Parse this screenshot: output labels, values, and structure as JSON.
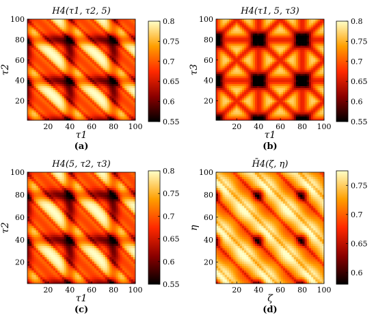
{
  "colors": {
    "map_low": "#000000",
    "map_mid_low": "#8b0000",
    "map_mid": "#ff2a00",
    "map_mid_high": "#ff9e00",
    "map_high": "#ffffc8"
  },
  "chart_data": [
    {
      "type": "heatmap",
      "title": "H4(τ1, τ2, 5)",
      "xlabel": "τ1",
      "ylabel": "τ2",
      "caption": "(a)",
      "xlim": [
        1,
        100
      ],
      "ylim": [
        1,
        100
      ],
      "xticks": [
        20,
        40,
        60,
        80,
        100
      ],
      "yticks": [
        20,
        40,
        60,
        80,
        100
      ],
      "clim": [
        0.55,
        0.8
      ],
      "colorbar_ticks": [
        0.55,
        0.6,
        0.65,
        0.7,
        0.75,
        0.8
      ],
      "colorbar_tick_labels": [
        "0.55",
        "0.6",
        "0.65",
        "0.7",
        "0.75",
        "0.8"
      ],
      "pattern": "diagonal",
      "period": 40,
      "grid": false,
      "colormap": "hot"
    },
    {
      "type": "heatmap",
      "title": "H4(τ1, 5, τ3)",
      "xlabel": "τ1",
      "ylabel": "τ3",
      "caption": "(b)",
      "xlim": [
        1,
        100
      ],
      "ylim": [
        1,
        100
      ],
      "xticks": [
        20,
        40,
        60,
        80,
        100
      ],
      "yticks": [
        20,
        40,
        60,
        80,
        100
      ],
      "clim": [
        0.55,
        0.8
      ],
      "colorbar_ticks": [
        0.55,
        0.6,
        0.65,
        0.7,
        0.75,
        0.8
      ],
      "colorbar_tick_labels": [
        "0.55",
        "0.6",
        "0.65",
        "0.7",
        "0.75",
        "0.8"
      ],
      "pattern": "cross",
      "period": 40,
      "grid": false,
      "colormap": "hot"
    },
    {
      "type": "heatmap",
      "title": "H4(5, τ2, τ3)",
      "xlabel": "τ1",
      "ylabel": "τ2",
      "caption": "(c)",
      "xlim": [
        1,
        100
      ],
      "ylim": [
        1,
        100
      ],
      "xticks": [
        20,
        40,
        60,
        80,
        100
      ],
      "yticks": [
        20,
        40,
        60,
        80,
        100
      ],
      "clim": [
        0.55,
        0.8
      ],
      "colorbar_ticks": [
        0.55,
        0.6,
        0.65,
        0.7,
        0.75,
        0.8
      ],
      "colorbar_tick_labels": [
        "0.55",
        "0.6",
        "0.65",
        "0.7",
        "0.75",
        "0.8"
      ],
      "pattern": "diagonal",
      "period": 40,
      "grid": false,
      "colormap": "hot"
    },
    {
      "type": "heatmap",
      "title": "H̄4(ζ, η)",
      "xlabel": "ζ",
      "ylabel": "η",
      "caption": "(d)",
      "xlim": [
        1,
        100
      ],
      "ylim": [
        1,
        100
      ],
      "xticks": [
        20,
        40,
        60,
        80,
        100
      ],
      "yticks": [
        20,
        40,
        60,
        80,
        100
      ],
      "clim": [
        0.58,
        0.775
      ],
      "colorbar_ticks": [
        0.6,
        0.65,
        0.7,
        0.75
      ],
      "colorbar_tick_labels": [
        "0.6",
        "0.65",
        "0.7",
        "0.75"
      ],
      "pattern": "mixed",
      "period": 40,
      "grid": false,
      "colormap": "hot"
    }
  ]
}
